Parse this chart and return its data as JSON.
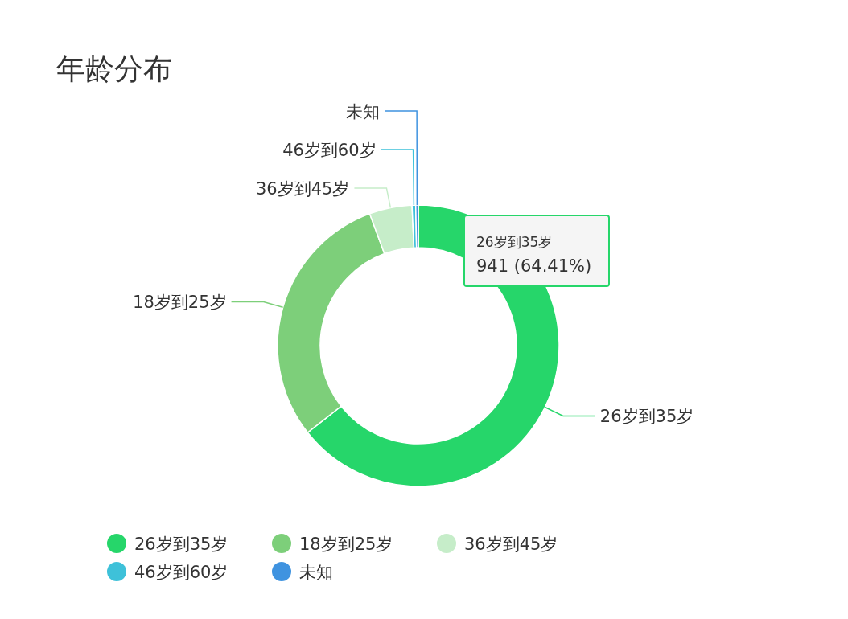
{
  "chart_data": {
    "type": "donut",
    "title": "年龄分布",
    "categories": [
      "26岁到35岁",
      "18岁到25岁",
      "36岁到45岁",
      "46岁到60岁",
      "未知"
    ],
    "values": [
      64.41,
      29.97,
      4.9,
      0.42,
      0.3
    ],
    "colors": [
      "#26d66a",
      "#7dcf7a",
      "#c6edc9",
      "#3ec1d9",
      "#3f93e0"
    ],
    "annotations": [
      "26岁到35岁",
      "941 (64.41%)"
    ],
    "legend": "bottom"
  }
}
